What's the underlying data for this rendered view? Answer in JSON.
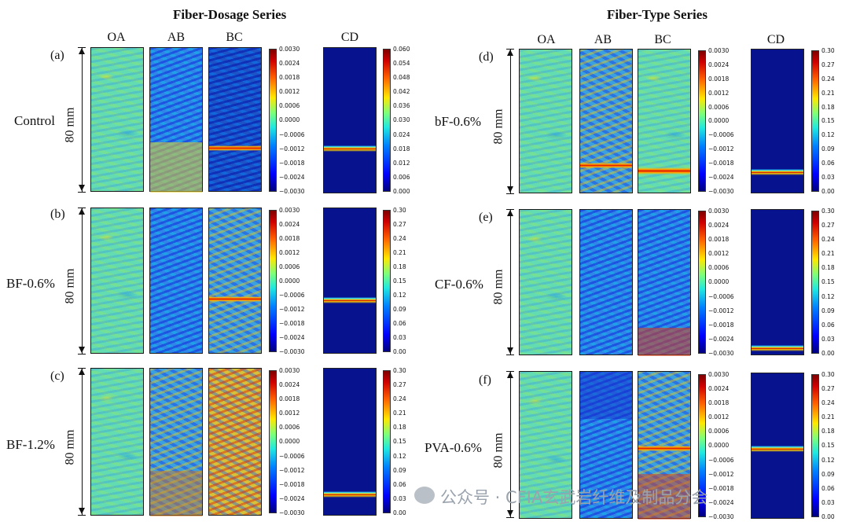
{
  "titles": {
    "left": "Fiber-Dosage Series",
    "right": "Fiber-Type Series"
  },
  "columns": [
    "OA",
    "AB",
    "BC",
    "CD"
  ],
  "length_label": "80 mm",
  "strain_ticks": [
    "0.0030",
    "0.0024",
    "0.0018",
    "0.0012",
    "0.0006",
    "0.0000",
    "−0.0006",
    "−0.0012",
    "−0.0018",
    "−0.0024",
    "−0.0030"
  ],
  "cd_ticks_control": [
    "0.060",
    "0.054",
    "0.048",
    "0.042",
    "0.036",
    "0.030",
    "0.024",
    "0.018",
    "0.012",
    "0.006",
    "0.000"
  ],
  "cd_ticks": [
    "0.30",
    "0.27",
    "0.24",
    "0.21",
    "0.18",
    "0.15",
    "0.12",
    "0.09",
    "0.06",
    "0.03",
    "0.00"
  ],
  "panels": [
    {
      "letter": "(a)",
      "name": "Control"
    },
    {
      "letter": "(b)",
      "name": "BF-0.6%"
    },
    {
      "letter": "(c)",
      "name": "BF-1.2%"
    },
    {
      "letter": "(d)",
      "name": "bF-0.6%"
    },
    {
      "letter": "(e)",
      "name": "CF-0.6%"
    },
    {
      "letter": "(f)",
      "name": "PVA-0.6%"
    }
  ],
  "watermark": {
    "text": "公众号 · CFIA玄武岩纤维及制品分会"
  },
  "colormap": {
    "low": "#00007f",
    "mid": "#7cff7c",
    "high": "#7f0000",
    "cd_background": "#07128f"
  }
}
